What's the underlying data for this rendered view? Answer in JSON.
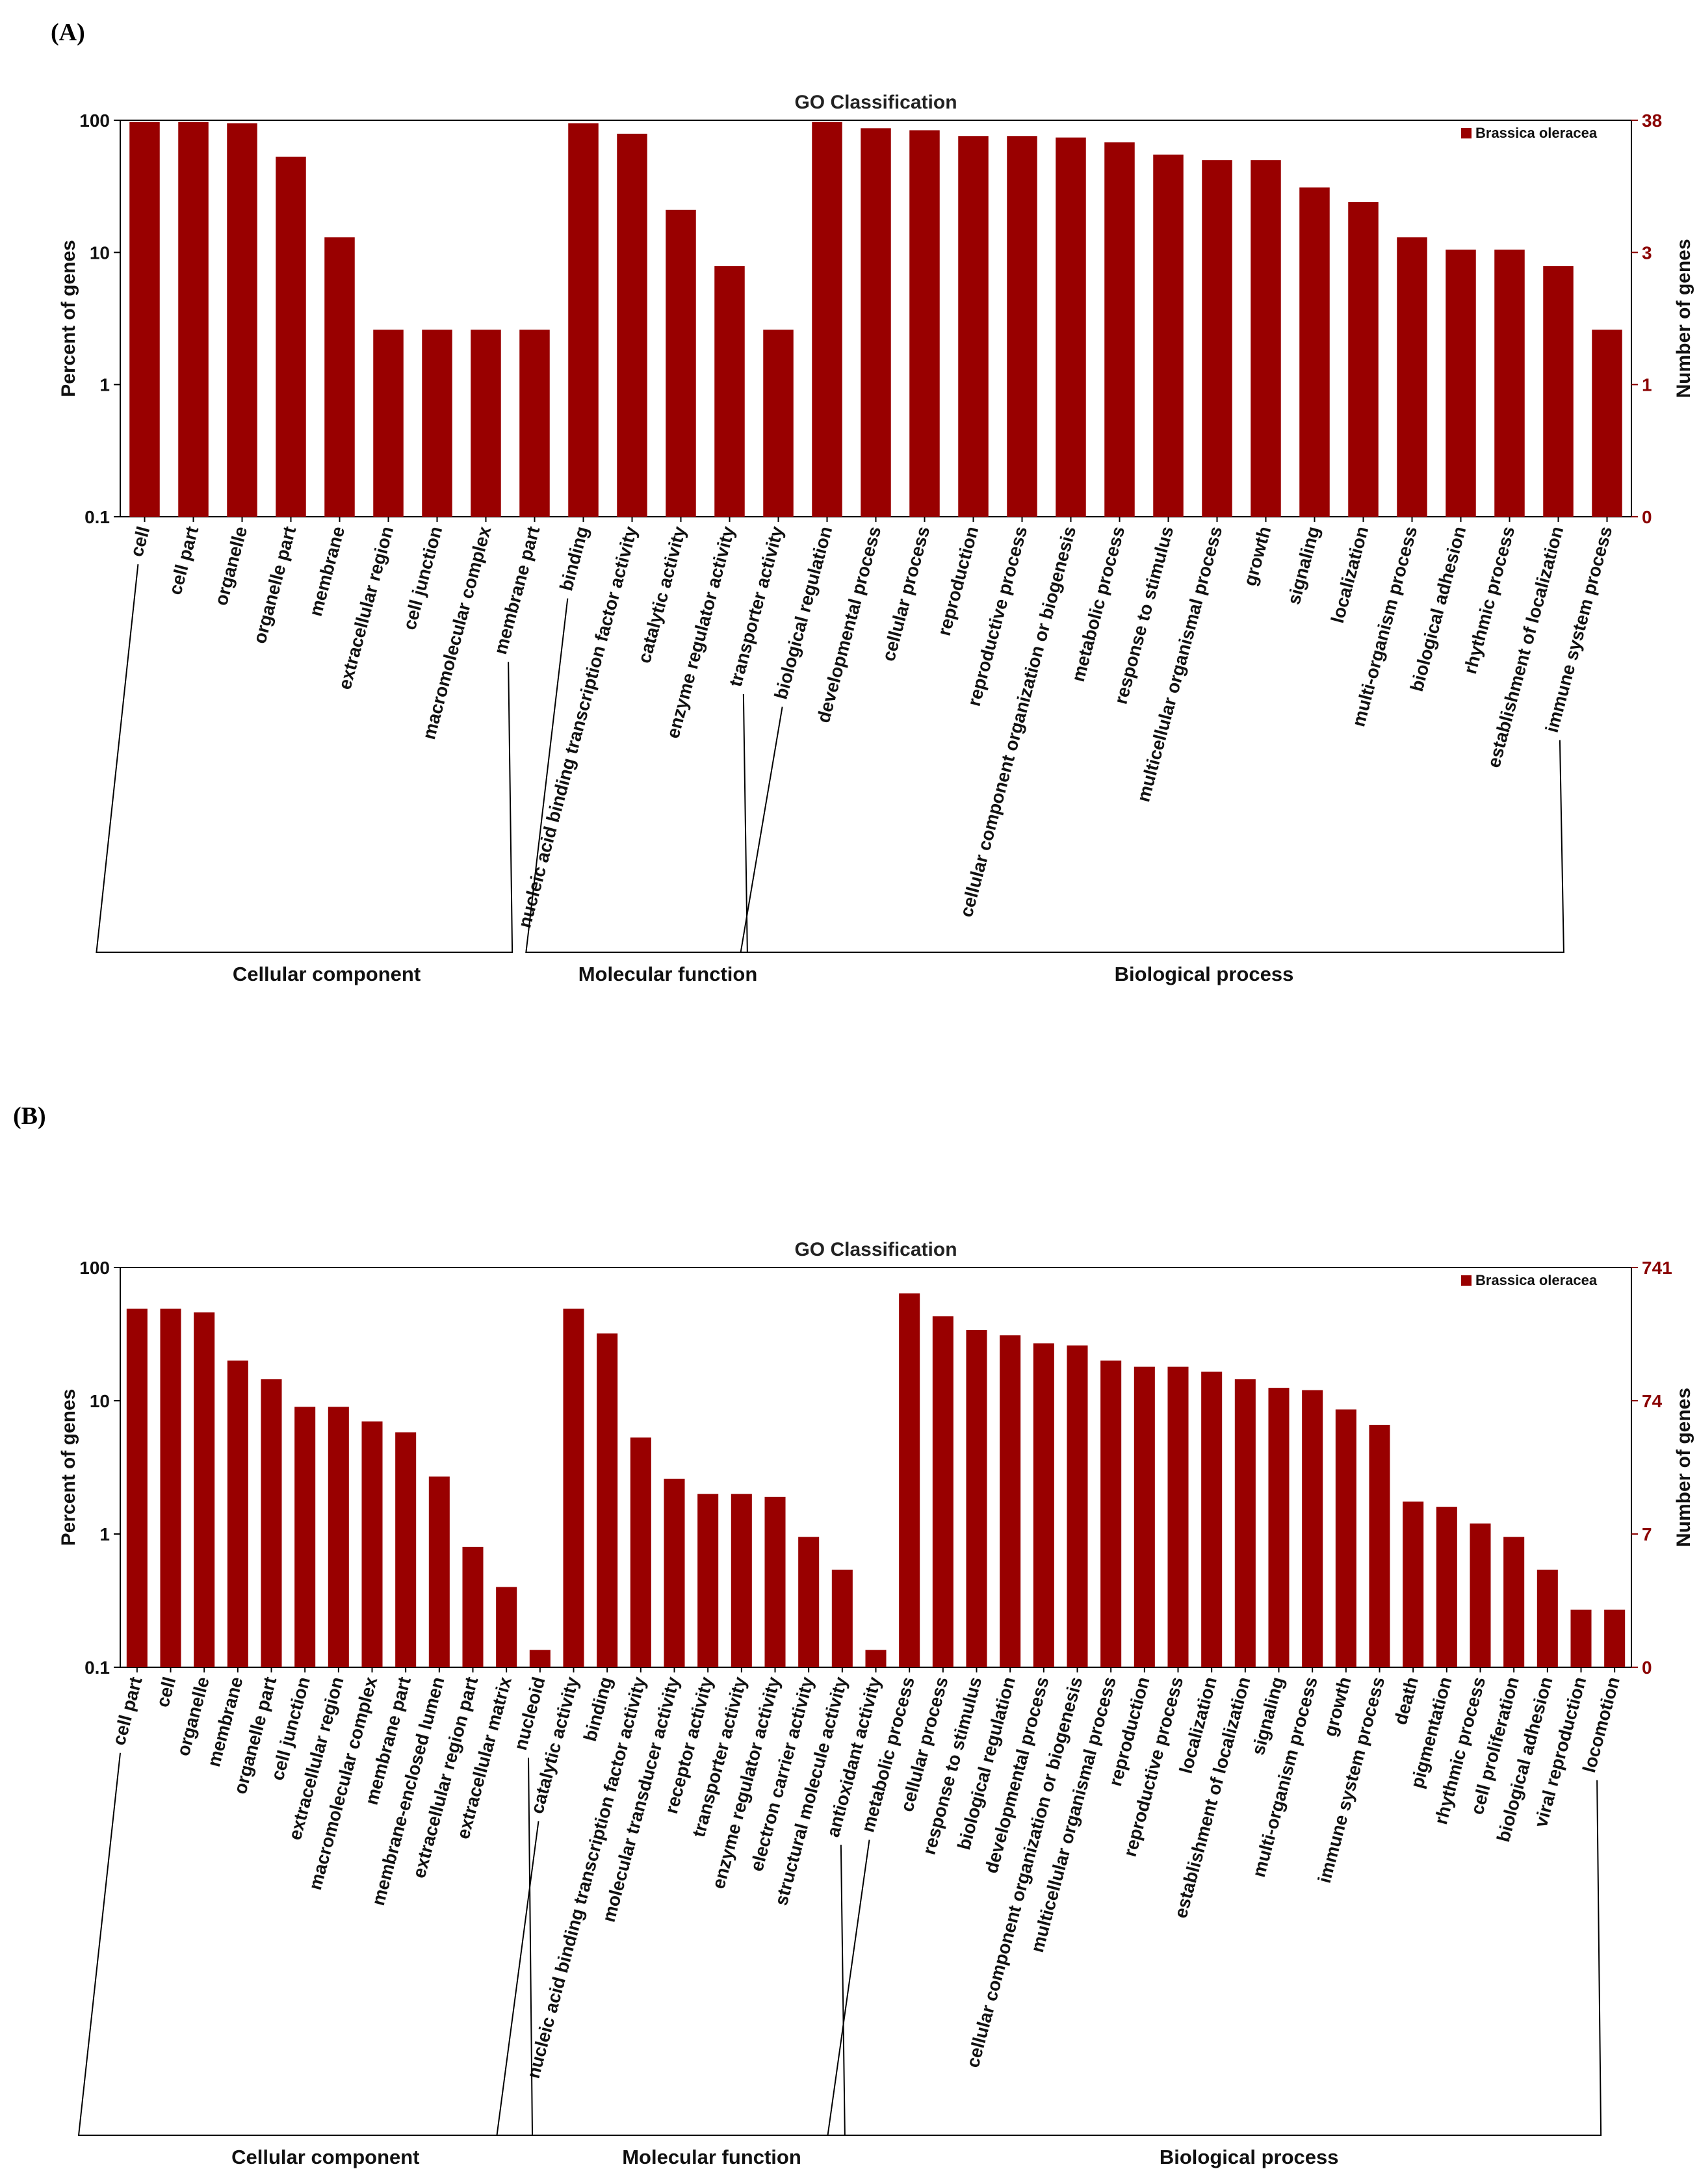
{
  "colors": {
    "bar": "#990000",
    "axis_right": "#8b0000"
  },
  "panel_a_label": "(A)",
  "panel_b_label": "(B)",
  "chart_data": [
    {
      "type": "bar",
      "title": "GO Classification",
      "ylabel": "Percent of genes",
      "ylabel_right": "Number of genes",
      "yscale": "log",
      "ylim": [
        0.1,
        100
      ],
      "yticks": [
        "100",
        "10",
        "1",
        "0.1"
      ],
      "yticks_right": [
        "38",
        "3",
        "1",
        "0"
      ],
      "legend": "Brassica oleracea",
      "legend_position": "top-right",
      "categories": [
        "cell",
        "cell part",
        "organelle",
        "organelle part",
        "membrane",
        "extracellular region",
        "cell junction",
        "macromolecular complex",
        "membrane part",
        "binding",
        "nucleic acid binding transcription factor activity",
        "catalytic activity",
        "enzyme regulator activity",
        "transporter activity",
        "biological regulation",
        "developmental process",
        "cellular process",
        "reproduction",
        "reproductive process",
        "cellular component organization or biogenesis",
        "metabolic process",
        "response to stimulus",
        "multicellular organismal process",
        "growth",
        "signaling",
        "localization",
        "multi-organism process",
        "biological adhesion",
        "rhythmic process",
        "establishment of localization",
        "immune system process"
      ],
      "values": [
        97,
        97,
        95,
        53,
        13,
        2.6,
        2.6,
        2.6,
        2.6,
        95,
        79,
        21,
        7.9,
        2.6,
        97,
        87,
        84,
        76,
        76,
        74,
        68,
        55,
        50,
        50,
        31,
        24,
        13,
        10.5,
        10.5,
        7.9,
        2.6
      ],
      "groups": [
        {
          "name": "Cellular component",
          "start": 0,
          "end": 8
        },
        {
          "name": "Molecular function",
          "start": 9,
          "end": 13
        },
        {
          "name": "Biological process",
          "start": 14,
          "end": 30
        }
      ]
    },
    {
      "type": "bar",
      "title": "GO Classification",
      "ylabel": "Percent of genes",
      "ylabel_right": "Number of genes",
      "yscale": "log",
      "ylim": [
        0.1,
        100
      ],
      "yticks": [
        "100",
        "10",
        "1",
        "0.1"
      ],
      "yticks_right": [
        "741",
        "74",
        "7",
        "0"
      ],
      "legend": "Brassica oleracea",
      "legend_position": "top-right",
      "categories": [
        "cell part",
        "cell",
        "organelle",
        "membrane",
        "organelle part",
        "cell junction",
        "extracellular region",
        "macromolecular complex",
        "membrane part",
        "membrane-enclosed lumen",
        "extracellular region part",
        "extracellular matrix",
        "nucleoid",
        "catalytic activity",
        "binding",
        "nucleic acid binding transcription factor activity",
        "molecular transducer activity",
        "receptor activity",
        "transporter activity",
        "enzyme regulator activity",
        "electron carrier activity",
        "structural molecule activity",
        "antioxidant activity",
        "metabolic process",
        "cellular process",
        "response to stimulus",
        "biological regulation",
        "developmental process",
        "cellular component organization or biogenesis",
        "multicellular organismal process",
        "reproduction",
        "reproductive process",
        "localization",
        "establishment of localization",
        "signaling",
        "multi-organism process",
        "growth",
        "immune system process",
        "death",
        "pigmentation",
        "rhythmic process",
        "cell proliferation",
        "biological adhesion",
        "viral reproduction",
        "locomotion"
      ],
      "values": [
        49,
        49,
        46,
        20,
        14.5,
        9,
        9,
        7,
        5.8,
        2.7,
        0.8,
        0.4,
        0.135,
        49,
        32,
        5.3,
        2.6,
        2.0,
        2.0,
        1.9,
        0.95,
        0.54,
        0.135,
        64,
        43,
        34,
        31,
        27,
        26,
        20,
        18,
        18,
        16.5,
        14.5,
        12.5,
        12,
        8.6,
        6.6,
        1.75,
        1.6,
        1.2,
        0.95,
        0.54,
        0.27,
        0.27
      ],
      "groups": [
        {
          "name": "Cellular component",
          "start": 0,
          "end": 12
        },
        {
          "name": "Molecular function",
          "start": 13,
          "end": 22
        },
        {
          "name": "Biological process",
          "start": 23,
          "end": 44
        }
      ]
    }
  ]
}
